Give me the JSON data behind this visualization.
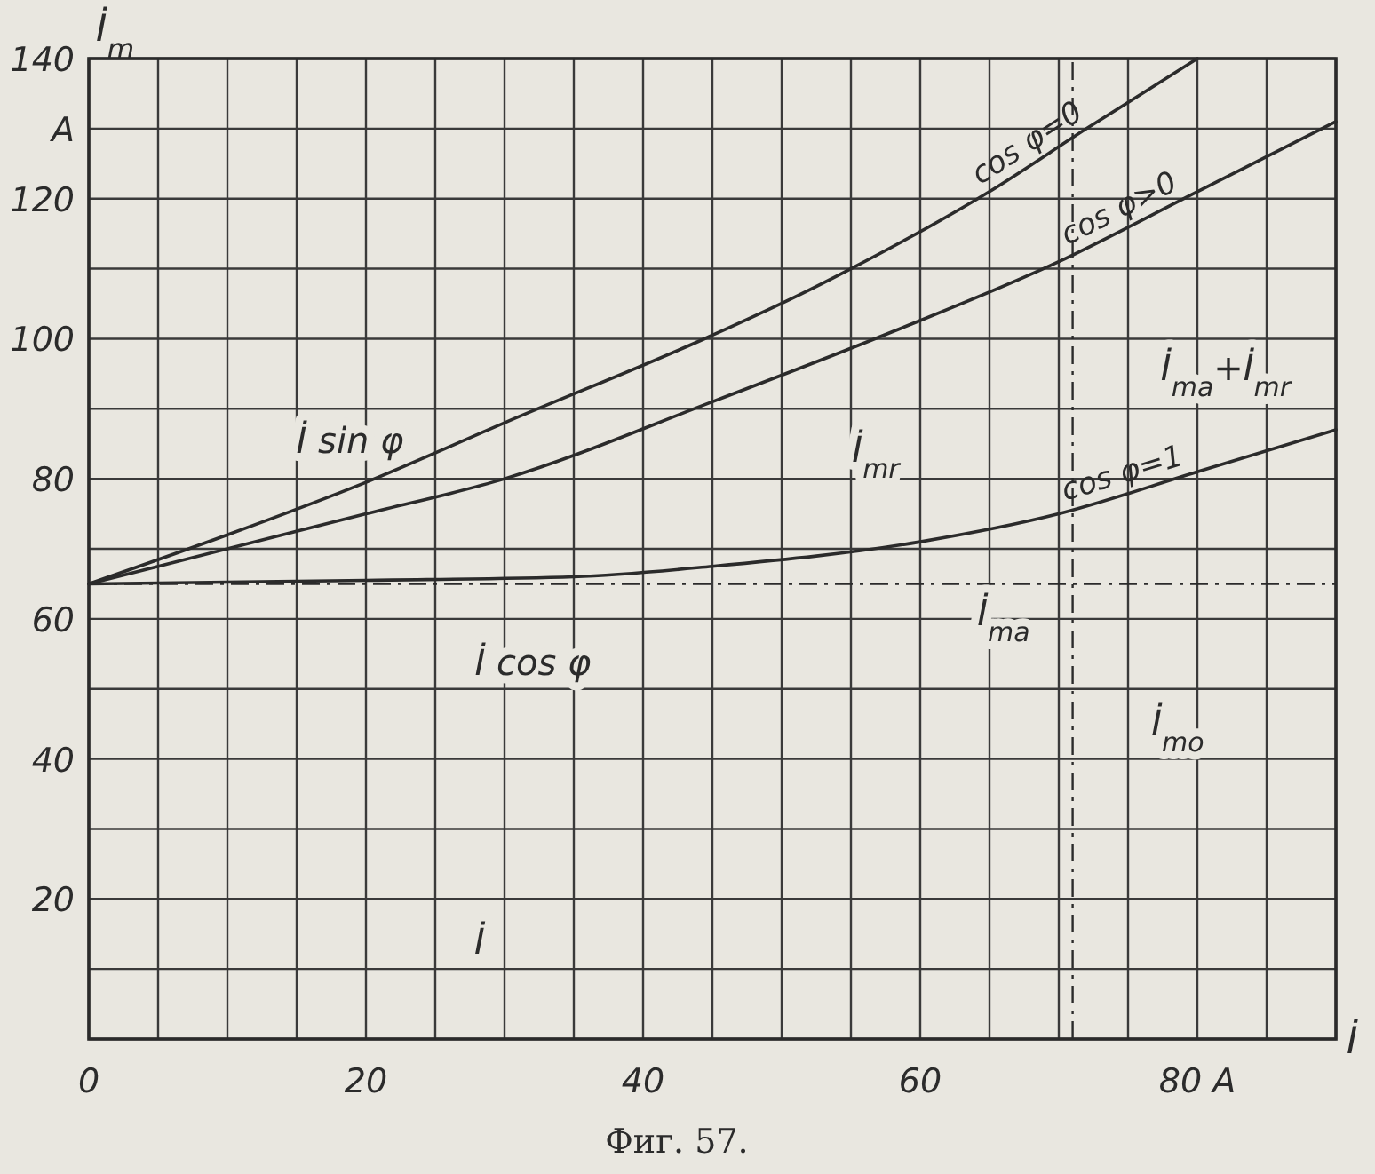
{
  "chart_data": {
    "type": "line",
    "xlabel": "İ",
    "ylabel": "İ$_{m}$",
    "xlim": [
      0,
      90
    ],
    "ylim": [
      0,
      140
    ],
    "xticks": [
      0,
      {
        "value": 5,
        "label": null
      },
      {
        "value": 10,
        "label": null
      },
      {
        "value": 15,
        "label": null
      },
      20,
      {
        "value": 25,
        "label": null
      },
      {
        "value": 30,
        "label": null
      },
      {
        "value": 35,
        "label": null
      },
      40,
      {
        "value": 45,
        "label": null
      },
      {
        "value": 50,
        "label": null
      },
      {
        "value": 55,
        "label": null
      },
      60,
      {
        "value": 65,
        "label": null
      },
      {
        "value": 70,
        "label": null
      },
      {
        "value": 75,
        "label": null
      },
      {
        "value": 80,
        "label": "80 A"
      },
      {
        "value": 85,
        "label": null
      },
      {
        "value": 90,
        "label": null
      }
    ],
    "yticks": [
      {
        "value": 0,
        "label": null
      },
      {
        "value": 10,
        "label": null
      },
      20,
      {
        "value": 30,
        "label": null
      },
      40,
      {
        "value": 50,
        "label": null
      },
      60,
      {
        "value": 70,
        "label": null
      },
      80,
      {
        "value": 90,
        "label": null
      },
      100,
      {
        "value": 110,
        "label": null
      },
      120,
      {
        "value": 130,
        "label": "A"
      },
      140
    ],
    "grid": true,
    "line_style": "solid",
    "marker": "none",
    "series": [
      {
        "name": "cos φ=0",
        "color": "#2b2b2b",
        "x": [
          0,
          10,
          20,
          30,
          45,
          51,
          55,
          65,
          72,
          80
        ],
        "values": [
          65,
          72,
          79.5,
          88,
          100.5,
          106,
          110,
          121,
          130,
          140
        ]
      },
      {
        "name": "cos φ>0",
        "color": "#2b2b2b",
        "x": [
          0,
          10,
          20,
          30,
          45,
          58,
          70,
          80,
          90
        ],
        "values": [
          65,
          70,
          75,
          80,
          91,
          101,
          111,
          121,
          131
        ]
      },
      {
        "name": "cos φ=1",
        "color": "#2b2b2b",
        "x": [
          0,
          20,
          35,
          45,
          60,
          70,
          80,
          90
        ],
        "values": [
          65,
          65.5,
          66,
          67.5,
          71,
          75,
          81,
          87
        ]
      }
    ],
    "ref_lines": [
      {
        "axis": "y",
        "value": 65,
        "line_style": "dashed",
        "color": "#2b2b2b"
      },
      {
        "axis": "x",
        "value": 71,
        "line_style": "dashed",
        "color": "#2b2b2b"
      }
    ],
    "annotations": [
      "İ sin φ",
      "İ cos φ",
      "İ",
      "İ$_{mr}$",
      "İ$_{ma}$+İ$_{mr}$",
      "İ$_{ma}$",
      "İ$_{mo}$",
      "Фиг. 57."
    ]
  }
}
